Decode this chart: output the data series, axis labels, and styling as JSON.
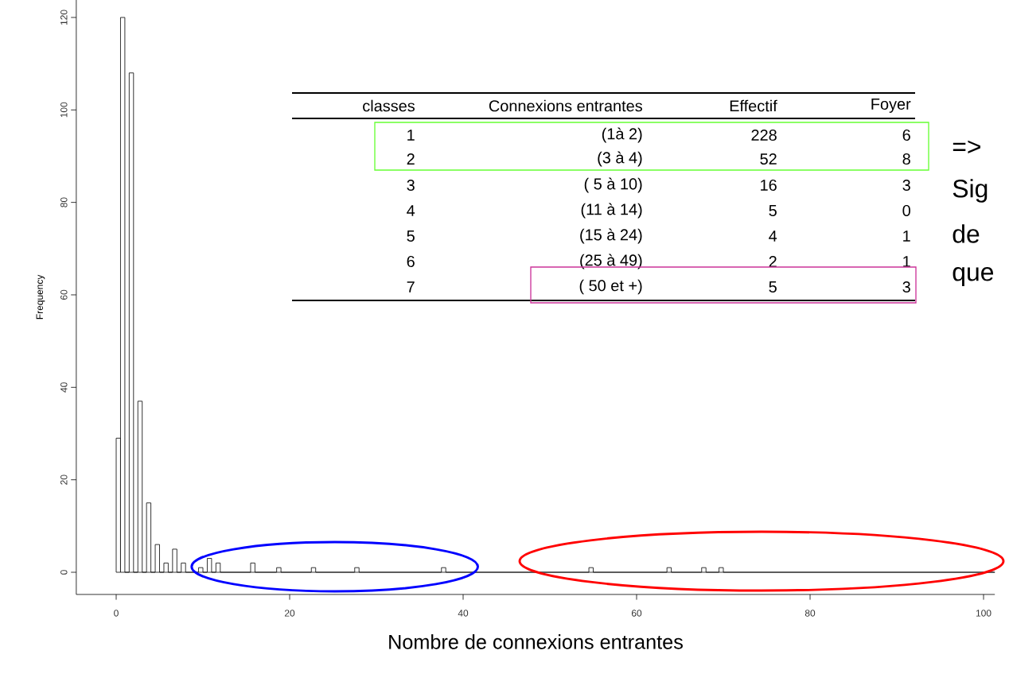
{
  "chart_data": {
    "type": "histogram",
    "xlabel": "Nombre de connexions entrantes",
    "ylabel": "Frequency",
    "bins": [
      0,
      0.5,
      1,
      1.5,
      2,
      2.5,
      3,
      3.5,
      4,
      4.5,
      5,
      5.5,
      6,
      6.5,
      7,
      7.5,
      8,
      9.5,
      10,
      10.5,
      11,
      11.5,
      12,
      15.5,
      16,
      18.5,
      19,
      22.5,
      23,
      27.5,
      28,
      37.5,
      38,
      54.5,
      55,
      63.5,
      64,
      67.5,
      68,
      69.5,
      70,
      101.3
    ],
    "values": [
      29,
      120,
      0,
      108,
      0,
      37,
      0,
      15,
      0,
      6,
      0,
      2,
      0,
      5,
      0,
      2,
      0,
      1,
      0,
      3,
      0,
      2,
      0,
      2,
      0,
      1,
      0,
      1,
      0,
      1,
      0,
      1,
      0,
      1,
      0,
      1,
      0,
      1,
      0,
      1,
      0
    ],
    "color": "#000000",
    "xlim": [
      -4.6,
      101.3
    ],
    "ylim": [
      -4.8,
      123.8
    ],
    "xticks": [
      0,
      20,
      40,
      60,
      80,
      100
    ],
    "yticks": [
      0,
      20,
      40,
      60,
      80,
      100,
      120
    ],
    "annotations": [
      "classes",
      "Connexions entrantes",
      "Effectif",
      "Foyer",
      "1",
      "(1à 2)",
      "228",
      "6",
      "2",
      "(3 à 4)",
      "52",
      "8",
      "3",
      "( 5 à 10)",
      "16",
      "3",
      "4",
      "(11 à 14)",
      "5",
      "0",
      "5",
      "(15 à 24)",
      "4",
      "1",
      "6",
      "(25 à 49)",
      "2",
      "1",
      "7",
      "( 50 et +)",
      "5",
      "3",
      "=>",
      "Sig",
      "de",
      "que"
    ]
  }
}
